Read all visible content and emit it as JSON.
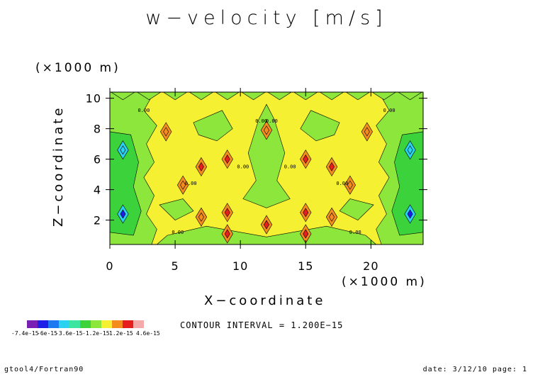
{
  "title": "w−velocity [m/s]",
  "contour_interval": "CONTOUR INTERVAL = 1.200E−15",
  "footer": {
    "left": "gtool4/Fortran90",
    "right": "date: 3/12/10 page: 1"
  },
  "chart_data": {
    "type": "heatmap",
    "title": "w−velocity [m/s]",
    "xlabel": "X−coordinate",
    "ylabel": "Z−coordinate",
    "x_unit": "(×1000 m)",
    "y_unit": "(×1000 m)",
    "xlim": [
      0,
      24
    ],
    "ylim": [
      0.4,
      10.4
    ],
    "x_ticks": [
      0,
      5,
      10,
      15,
      20
    ],
    "y_ticks": [
      2,
      4,
      6,
      8,
      10
    ],
    "x_tick_labels": [
      "0",
      "5",
      "10",
      "15",
      "20"
    ],
    "y_tick_labels": [
      "2",
      "4",
      "6",
      "8",
      "10"
    ],
    "contour_label": "0.00",
    "colorbar": {
      "colors": [
        "#7a1fb4",
        "#1e1ee6",
        "#1e78f0",
        "#28d2f0",
        "#3ce6a0",
        "#3cd23c",
        "#8ce63c",
        "#f5f032",
        "#f58c1e",
        "#e61e1e",
        "#f5aaaa"
      ],
      "labels": [
        "-7.4e-15",
        "-6e-15",
        "-3.6e-15",
        "-1.2e-15",
        "1.2e-15",
        "4.6e-15"
      ]
    },
    "features": [
      {
        "x": 1.0,
        "z": 2.4,
        "value": -7.4e-15,
        "color": "#1e1ee6"
      },
      {
        "x": 23.0,
        "z": 2.4,
        "value": -7.4e-15,
        "color": "#1e1ee6"
      },
      {
        "x": 1.0,
        "z": 6.6,
        "value": -3.6e-15,
        "color": "#28d2f0"
      },
      {
        "x": 23.0,
        "z": 6.6,
        "value": -3.6e-15,
        "color": "#28d2f0"
      },
      {
        "x": 9.0,
        "z": 6.0,
        "value": 3.6e-15,
        "color": "#e61e1e"
      },
      {
        "x": 15.0,
        "z": 6.0,
        "value": 3.6e-15,
        "color": "#e61e1e"
      },
      {
        "x": 9.0,
        "z": 2.5,
        "value": 4.6e-15,
        "color": "#e61e1e"
      },
      {
        "x": 15.0,
        "z": 2.5,
        "value": 4.6e-15,
        "color": "#e61e1e"
      },
      {
        "x": 9.0,
        "z": 1.1,
        "value": 3.6e-15,
        "color": "#e61e1e"
      },
      {
        "x": 15.0,
        "z": 1.1,
        "value": 3.6e-15,
        "color": "#e61e1e"
      },
      {
        "x": 12.0,
        "z": 1.7,
        "value": 3.6e-15,
        "color": "#e61e1e"
      },
      {
        "x": 7.0,
        "z": 5.5,
        "value": 3.6e-15,
        "color": "#e61e1e"
      },
      {
        "x": 17.0,
        "z": 5.5,
        "value": 3.6e-15,
        "color": "#e61e1e"
      },
      {
        "x": 12.0,
        "z": 7.9,
        "value": 2.4e-15,
        "color": "#f58c1e"
      },
      {
        "x": 4.3,
        "z": 7.8,
        "value": 2.4e-15,
        "color": "#f58c1e"
      },
      {
        "x": 19.7,
        "z": 7.8,
        "value": 2.4e-15,
        "color": "#f58c1e"
      },
      {
        "x": 7.0,
        "z": 2.2,
        "value": 2.4e-15,
        "color": "#f58c1e"
      },
      {
        "x": 17.0,
        "z": 2.2,
        "value": 2.4e-15,
        "color": "#f58c1e"
      },
      {
        "x": 5.6,
        "z": 4.3,
        "value": 2.4e-15,
        "color": "#f58c1e"
      },
      {
        "x": 18.4,
        "z": 4.3,
        "value": 2.4e-15,
        "color": "#f58c1e"
      }
    ]
  }
}
